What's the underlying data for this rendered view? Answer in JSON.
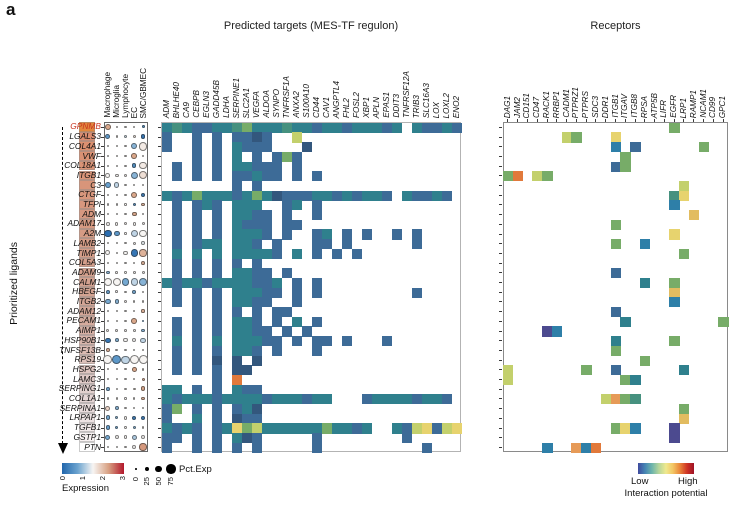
{
  "panel_label": "a",
  "axis_left": {
    "label": "Prioritized ligands"
  },
  "highlight_color": "#c8341f",
  "priority_colors": [
    "#e2873d",
    "#db8d70",
    "#db9070",
    "#da9173",
    "#d99376",
    "#d99478",
    "#d8957a",
    "#d8967c",
    "#d7977e",
    "#d79880",
    "#d69a82",
    "#d69b84",
    "#d59c86",
    "#d59d88",
    "#d49f8b",
    "#d4a08d",
    "#d3a18f",
    "#d3a391",
    "#d2a494",
    "#d2a596",
    "#d4ab9d",
    "#d6b0a4",
    "#d8b5ab",
    "#dabab2",
    "#dcc0b9",
    "#dec5c0",
    "#e0cac7",
    "#e2d0ce",
    "#e5d5d5",
    "#e9dcdc",
    "#ede3e3",
    "#f2eaea",
    "#f8f2f2",
    "#ffffff"
  ],
  "palette": {
    "1": "#3d6b97",
    "2": "#2f808d",
    "3": "#46917f",
    "4": "#77ac68",
    "5": "#c3d06c",
    "6": "#e7d36e",
    "7": "#e2bc60",
    "8": "#e1793b",
    "9": "#33577d",
    "o": "#e69a57",
    "b": "#2e7fa8",
    "p": "#4c4a8f"
  },
  "legends": {
    "expression": {
      "title": "Expression",
      "ticks": [
        "0",
        "1",
        "2",
        "3"
      ],
      "gradient": [
        "#2166ac",
        "#6ba3cf",
        "#f7f5f3",
        "#d8a183",
        "#b2182b"
      ]
    },
    "pct": {
      "title": "Pct.Exp",
      "ticks": [
        "0",
        "25",
        "50",
        "75"
      ]
    },
    "interaction": {
      "title": "Interaction potential",
      "low": "Low",
      "high": "High",
      "gradient": [
        "#3f4a9e",
        "#4585b4",
        "#6eb5ab",
        "#b7d69b",
        "#efe98e",
        "#f3c563",
        "#e98439",
        "#cf3425",
        "#9e1126"
      ]
    }
  },
  "chart_data": [
    {
      "type": "scatter",
      "name": "cell-type-expression-dotplot",
      "columns": [
        "Macrophage",
        "Microglia",
        "Lymphocyte",
        "EC",
        "SMC/GBMEC"
      ],
      "rows": [
        "GPNMB",
        "LGALS3",
        "COL4A1",
        "VWF",
        "COL18A1",
        "ITGB1",
        "C3",
        "CTGF",
        "TFPI",
        "ADM",
        "ADAM17",
        "A2M",
        "LAMB2",
        "TIMP1",
        "COL5A3",
        "ADAM9",
        "CALM1",
        "HBEGF",
        "ITGB2",
        "ADAM12",
        "PECAM1",
        "AIMP1",
        "HSP90B1",
        "TNFSF13B",
        "RPS19",
        "HSPG2",
        "LAMC3",
        "SERPING1",
        "COL1A1",
        "SERPINA1",
        "LRPAP1",
        "TGFB1",
        "GSTP1",
        "PTN"
      ],
      "highlighted_row": "GPNMB",
      "size_encoding": "Pct.Exp (0-75)",
      "color_encoding": "Expression (0-3, blue-white-red)",
      "points": [
        [
          [
            40,
            2.2
          ],
          [
            5,
            1.5
          ],
          [
            5,
            1.5
          ],
          [
            4,
            1.5
          ],
          [
            10,
            0.5
          ]
        ],
        [
          [
            30,
            0.6
          ],
          [
            4,
            1.5
          ],
          [
            18,
            1.3
          ],
          [
            12,
            1.6
          ],
          [
            25,
            0.2
          ]
        ],
        [
          [
            4,
            1.5
          ],
          [
            3,
            1.5
          ],
          [
            4,
            1.5
          ],
          [
            40,
            0.9
          ],
          [
            65,
            1.6
          ]
        ],
        [
          [
            4,
            1.5
          ],
          [
            3,
            1.5
          ],
          [
            4,
            1.5
          ],
          [
            38,
            2.2
          ],
          [
            6,
            1.5
          ]
        ],
        [
          [
            4,
            1.5
          ],
          [
            4,
            1.5
          ],
          [
            4,
            1.5
          ],
          [
            25,
            0.5
          ],
          [
            55,
            1.6
          ]
        ],
        [
          [
            30,
            1.5
          ],
          [
            18,
            1.5
          ],
          [
            15,
            1.5
          ],
          [
            55,
            0.9
          ],
          [
            60,
            1.7
          ]
        ],
        [
          [
            38,
            0.7
          ],
          [
            32,
            1.2
          ],
          [
            5,
            1.5
          ],
          [
            4,
            1.5
          ],
          [
            5,
            1.5
          ]
        ],
        [
          [
            4,
            1.5
          ],
          [
            4,
            1.5
          ],
          [
            4,
            1.5
          ],
          [
            42,
            2.2
          ],
          [
            22,
            0.3
          ]
        ],
        [
          [
            4,
            1.5
          ],
          [
            4,
            1.5
          ],
          [
            4,
            1.5
          ],
          [
            14,
            0.6
          ],
          [
            20,
            2.1
          ]
        ],
        [
          [
            8,
            1.5
          ],
          [
            5,
            1.5
          ],
          [
            5,
            1.5
          ],
          [
            28,
            2.2
          ],
          [
            6,
            1.5
          ]
        ],
        [
          [
            18,
            1.5
          ],
          [
            15,
            1.5
          ],
          [
            12,
            1.5
          ],
          [
            15,
            1.5
          ],
          [
            12,
            1.5
          ]
        ],
        [
          [
            55,
            0.1
          ],
          [
            38,
            0.6
          ],
          [
            5,
            1.5
          ],
          [
            55,
            1.2
          ],
          [
            58,
            1.5
          ]
        ],
        [
          [
            5,
            1.5
          ],
          [
            4,
            1.5
          ],
          [
            4,
            1.5
          ],
          [
            14,
            1.5
          ],
          [
            18,
            1.4
          ]
        ],
        [
          [
            30,
            1.5
          ],
          [
            5,
            1.5
          ],
          [
            25,
            1.5
          ],
          [
            52,
            0.2
          ],
          [
            52,
            2.1
          ]
        ],
        [
          [
            3,
            1.5
          ],
          [
            3,
            1.5
          ],
          [
            3,
            1.5
          ],
          [
            4,
            1.5
          ],
          [
            20,
            2.1
          ]
        ],
        [
          [
            15,
            0.9
          ],
          [
            8,
            1.5
          ],
          [
            6,
            1.5
          ],
          [
            10,
            1.5
          ],
          [
            12,
            1.5
          ]
        ],
        [
          [
            58,
            1.5
          ],
          [
            58,
            1.5
          ],
          [
            52,
            0.8
          ],
          [
            55,
            1.2
          ],
          [
            58,
            0.9
          ]
        ],
        [
          [
            20,
            0.7
          ],
          [
            8,
            1.5
          ],
          [
            5,
            1.5
          ],
          [
            18,
            0.8
          ],
          [
            6,
            1.5
          ]
        ],
        [
          [
            38,
            0.8
          ],
          [
            25,
            0.9
          ],
          [
            20,
            1.5
          ],
          [
            5,
            1.5
          ],
          [
            4,
            1.5
          ]
        ],
        [
          [
            4,
            1.5
          ],
          [
            3,
            1.5
          ],
          [
            3,
            1.5
          ],
          [
            4,
            1.5
          ],
          [
            15,
            2.1
          ]
        ],
        [
          [
            8,
            1.5
          ],
          [
            5,
            1.5
          ],
          [
            6,
            1.5
          ],
          [
            38,
            2.2
          ],
          [
            8,
            0.8
          ]
        ],
        [
          [
            12,
            1.5
          ],
          [
            10,
            1.5
          ],
          [
            10,
            1.5
          ],
          [
            10,
            1.5
          ],
          [
            15,
            0.9
          ]
        ],
        [
          [
            35,
            0.2
          ],
          [
            20,
            0.9
          ],
          [
            25,
            1.5
          ],
          [
            25,
            1.5
          ],
          [
            35,
            1.2
          ]
        ],
        [
          [
            18,
            2.1
          ],
          [
            6,
            1.5
          ],
          [
            5,
            1.5
          ],
          [
            4,
            1.5
          ],
          [
            4,
            1.5
          ]
        ],
        [
          [
            68,
            1.5
          ],
          [
            68,
            0.6
          ],
          [
            62,
            1.2
          ],
          [
            68,
            1.5
          ],
          [
            68,
            1.5
          ]
        ],
        [
          [
            4,
            1.5
          ],
          [
            4,
            1.5
          ],
          [
            4,
            1.5
          ],
          [
            28,
            2.2
          ],
          [
            6,
            1.5
          ]
        ],
        [
          [
            3,
            1.5
          ],
          [
            3,
            1.5
          ],
          [
            3,
            1.5
          ],
          [
            4,
            1.5
          ],
          [
            12,
            2.1
          ]
        ],
        [
          [
            20,
            0.8
          ],
          [
            5,
            1.5
          ],
          [
            4,
            1.5
          ],
          [
            6,
            1.6
          ],
          [
            28,
            2.2
          ]
        ],
        [
          [
            4,
            1.5
          ],
          [
            4,
            1.5
          ],
          [
            4,
            1.5
          ],
          [
            5,
            1.5
          ],
          [
            18,
            2.1
          ]
        ],
        [
          [
            32,
            1.8
          ],
          [
            18,
            0.9
          ],
          [
            5,
            1.5
          ],
          [
            4,
            1.5
          ],
          [
            5,
            1.5
          ]
        ],
        [
          [
            28,
            0.8
          ],
          [
            14,
            0.9
          ],
          [
            18,
            1.5
          ],
          [
            22,
            0.3
          ],
          [
            22,
            0.3
          ]
        ],
        [
          [
            28,
            0.7
          ],
          [
            16,
            0.8
          ],
          [
            6,
            1.5
          ],
          [
            16,
            0.9
          ],
          [
            6,
            1.5
          ]
        ],
        [
          [
            32,
            0.8
          ],
          [
            22,
            1.5
          ],
          [
            20,
            1.5
          ],
          [
            32,
            1.1
          ],
          [
            22,
            1.5
          ]
        ],
        [
          [
            8,
            1.5
          ],
          [
            5,
            1.5
          ],
          [
            6,
            1.5
          ],
          [
            22,
            1.5
          ],
          [
            52,
            2.3
          ]
        ]
      ]
    },
    {
      "type": "heatmap",
      "title": "Predicted targets (MES-TF regulon)",
      "value_encoding": "Interaction potential (Low to High)",
      "columns": [
        "ADM",
        "BHLHE40",
        "CA9",
        "CEBPB",
        "EGLN3",
        "GADD45B",
        "LDHA",
        "SERPINE1",
        "SLC2A1",
        "VEGFA",
        "ALDOA",
        "SYNPO",
        "TNFRSF1A",
        "ANXA2",
        "S100A10",
        "CD44",
        "CAV1",
        "ANGPTL4",
        "FHL2",
        "FOSL2",
        "XBP1",
        "APLN",
        "EPAS1",
        "DDIT3",
        "TNFRSF12A",
        "TRIB3",
        "SLC16A3",
        "LOX",
        "LOXL2",
        "ENO2"
      ],
      "grid": [
        "232112234222322122122212.21121",
        "1..1.1.1191..5................",
        "1..1.1.2111...9...............",
        "...1.1.2.1.141................",
        ".1.1.1.22111.1................",
        ".1.1.1.11211.1.1..............",
        ".......1.1....................",
        "21242221242911122121221.21121.",
        ".1.121.222..12.1..............",
        ".1.1.1.2211.1..1..............",
        ".1.1.1.2111.11................",
        ".1.1.1.2221.1..12.1.1..1.1....",
        ".1.122.221.1...11.1......1....",
        ".2.2.2.22221.2.1.1.1..........",
        ".1.1.1.1.1....................",
        ".1.1.1.2211.1.................",
        "212212222112.1.1..............",
        ".1.1.1.22211.1.1.........1....",
        ".1.1.1.2211..1................",
        "...1.1.1.1.11.................",
        ".1.1.1.221.1.2.1..............",
        ".1.1.1.2211.1.1...............",
        ".2.1.2.22211.1.11.1...1.......",
        ".1.1.1.221.1...1..............",
        ".1.1.9.9.9....................",
        ".1.1.1.99.....................",
        ".....1.8......................",
        "22.1.1.211....................",
        "21222122221222122...122221221.",
        "14.1.1.129....................",
        "1..2.1.911....................",
        "2121.1264522222242212..2156156",
        "11.1.1.291.....1........1.....",
        "1..1.1.1.1.....1..........1..."
      ]
    },
    {
      "type": "heatmap",
      "title": "Receptors",
      "value_encoding": "Interaction potential (Low to High)",
      "columns": [
        "DAG1",
        "JAM2",
        "CD151",
        "CD47",
        "RACK1",
        "RRBP1",
        "CADM1",
        "PTPRZ1",
        "PTPRS",
        "SDC3",
        "DDR1",
        "ITGB1",
        "ITGAV",
        "ITGB8",
        "RPSA",
        "ATP5B",
        "LIFR",
        "EGFR",
        "LRP1",
        "RAMP1",
        "NCAM1",
        "CD99",
        "GPC1"
      ],
      "grid": [
        ".................4.....",
        "......54...6...........",
        "...........b.1......4..",
        "............4..........",
        "...........14..........",
        "48.54..................",
        "..................5....",
        ".................36....",
        ".................b.....",
        "...................7...",
        "...........4...........",
        ".................6.....",
        "...........4..b........",
        "..................4....",
        ".......................",
        "...........1...........",
        "..............2..4.....",
        ".................7.....",
        ".................b.....",
        "...........1...........",
        "............2.........4",
        "....pb.................",
        "...........2.....4.....",
        "...........4...........",
        "..............4........",
        "5.......4..1......2....",
        "5...........42.........",
        ".......................",
        "..........5o43.........",
        "..................4....",
        "..................7....",
        "...........46b...p.....",
        ".................p.....",
        "....b..ob8............."
      ]
    }
  ]
}
